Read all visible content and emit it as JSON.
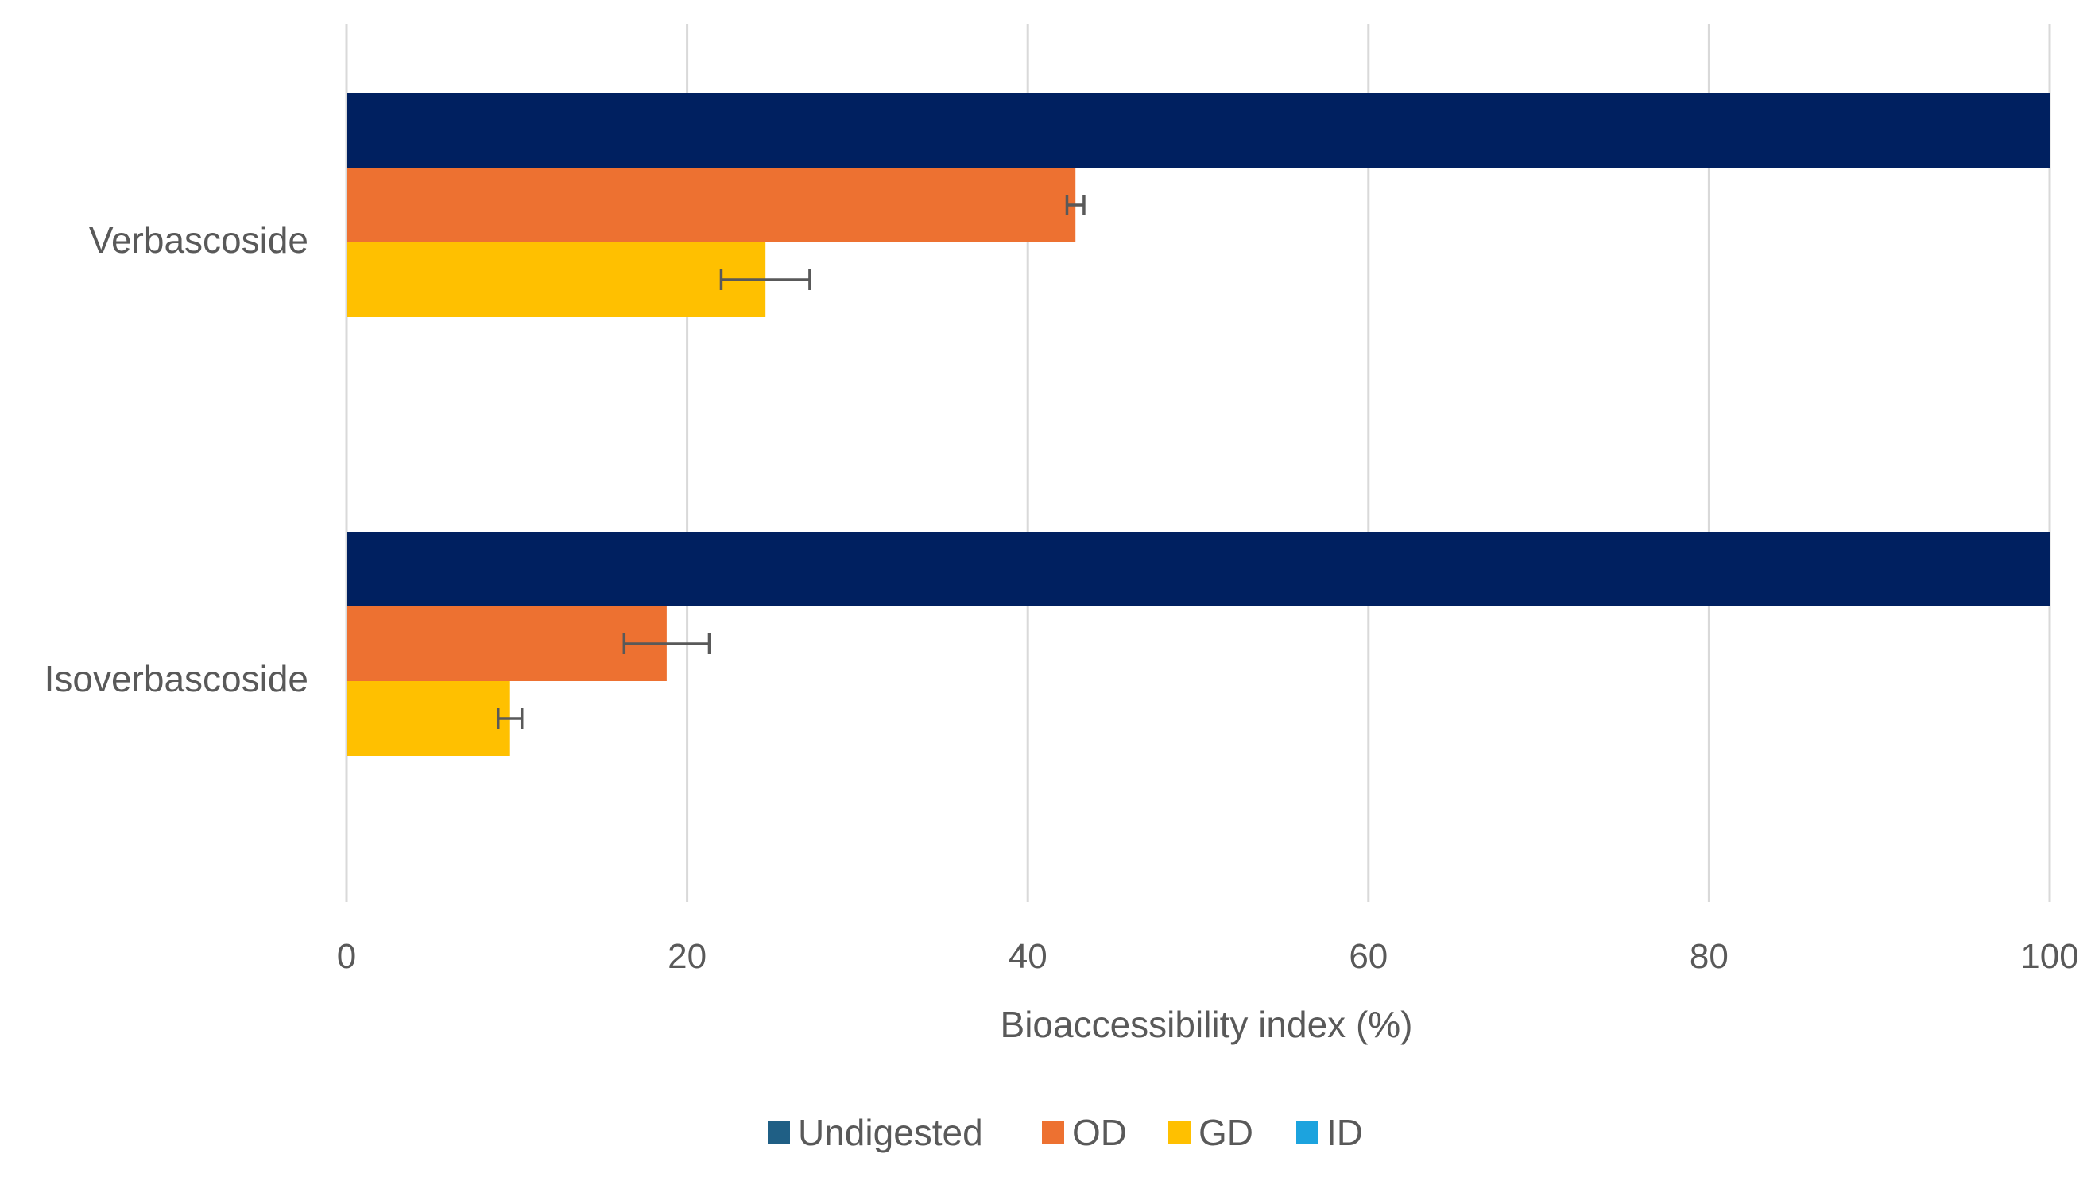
{
  "chart_data": {
    "type": "bar",
    "orientation": "horizontal",
    "title": "",
    "xlabel": "Bioaccessibility index (%)",
    "ylabel": "",
    "xlim": [
      0,
      100
    ],
    "x_ticks": [
      0,
      20,
      40,
      60,
      80,
      100
    ],
    "categories": [
      "Verbascoside",
      "Isoverbascoside"
    ],
    "series": [
      {
        "name": "Undigested",
        "color": "#002060",
        "values": [
          100,
          100
        ],
        "errors": [
          0,
          0
        ]
      },
      {
        "name": "OD",
        "color": "#ED7131",
        "values": [
          42.8,
          18.8
        ],
        "errors": [
          0.5,
          2.5
        ]
      },
      {
        "name": "GD",
        "color": "#FFC000",
        "values": [
          24.6,
          9.6
        ],
        "errors": [
          2.6,
          0.7
        ]
      },
      {
        "name": "ID",
        "color": "#1CA3DE",
        "values": [
          0,
          0
        ],
        "errors": [
          0,
          0
        ]
      }
    ],
    "legend_position": "bottom",
    "grid": true,
    "legend_swatch_colors": [
      "#1F5F85",
      "#ED7131",
      "#FFC000",
      "#1CA3DE"
    ]
  }
}
